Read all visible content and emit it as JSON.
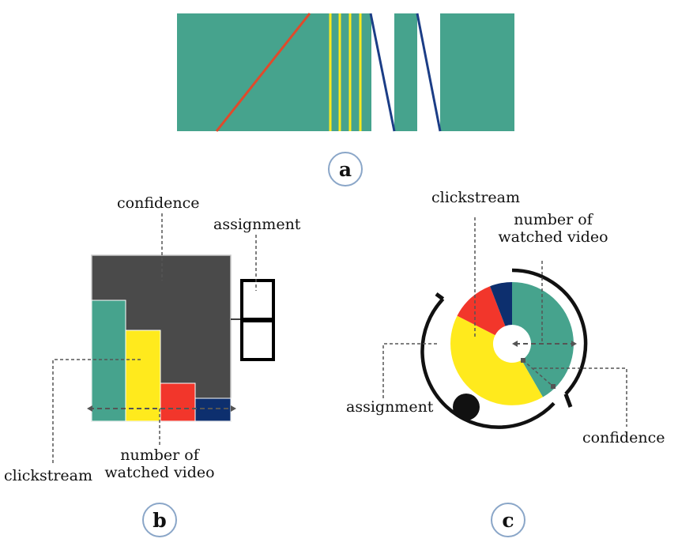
{
  "panel_a": {
    "badge": "a",
    "colors": {
      "band": "#46a38d",
      "red": "#e04a2b",
      "yellow": "#ffea1d",
      "blue": "#1b3d86"
    }
  },
  "panel_b": {
    "badge": "b",
    "labels": {
      "confidence": "confidence",
      "assignment": "assignment",
      "clickstream": "clickstream",
      "videos_line1": "number of",
      "videos_line2": "watched video"
    },
    "colors": {
      "dark": "#4a4a4a",
      "teal": "#46a38d",
      "yellow": "#ffea1d",
      "red": "#f2362b",
      "navy": "#0d2f6e"
    }
  },
  "panel_c": {
    "badge": "c",
    "labels": {
      "clickstream": "clickstream",
      "videos_line1": "number of",
      "videos_line2": "watched video",
      "assignment": "assignment",
      "confidence": "confidence"
    },
    "colors": {
      "teal": "#46a38d",
      "yellow": "#ffea1d",
      "red": "#f2362b",
      "navy": "#0d2f6e",
      "ring": "#111111"
    }
  }
}
